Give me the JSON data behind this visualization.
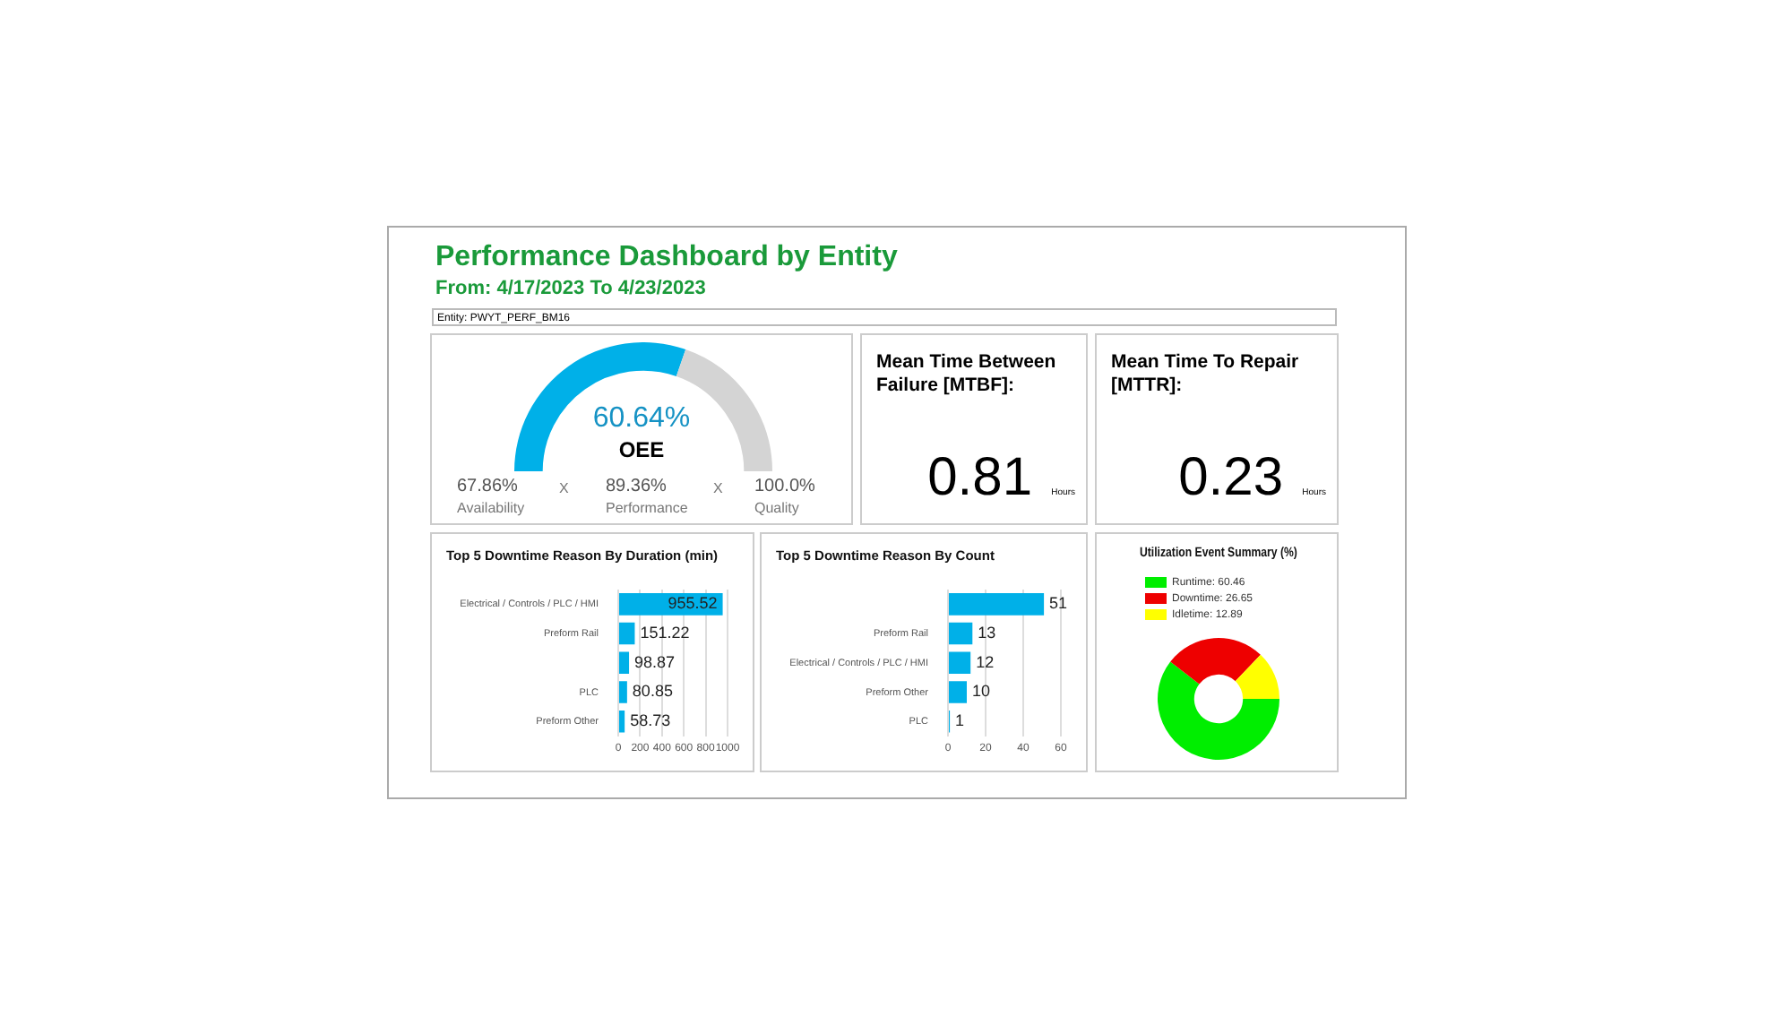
{
  "chart_data": [
    {
      "type": "other",
      "title": "Performance Dashboard by Entity",
      "subtitle": "From: 4/17/2023 To 4/23/2023",
      "annotations": [
        "Entity: PWYT_PERF_BM16"
      ]
    },
    {
      "type": "donut",
      "categories": [
        "OEE",
        null
      ],
      "values": [
        60.64,
        39.36
      ],
      "colors": [
        "#00b0e8",
        "#d4d4d4"
      ],
      "value_labels": [
        "60.64%",
        null
      ],
      "annotations": [
        "67.86%",
        "Availability",
        "X",
        "89.36%",
        "Performance",
        "X",
        "100.0%",
        "Quality"
      ]
    },
    {
      "type": "other",
      "title": "Mean Time Between Failure [MTBF]:",
      "annotations": [
        "0.81",
        "Hours"
      ]
    },
    {
      "type": "other",
      "title": "Mean Time To Repair [MTTR]:",
      "annotations": [
        "0.23",
        "Hours"
      ]
    },
    {
      "type": "bar",
      "orientation": "horizontal",
      "title": "Top 5 Downtime Reason By Duration (min)",
      "categories": [
        "Electrical / Controls / PLC / HMI",
        "Preform Rail",
        null,
        "PLC",
        "Preform Other"
      ],
      "values": [
        955.52,
        151.22,
        98.87,
        80.85,
        58.73
      ],
      "color": "#00b0e8",
      "xlim": [
        0,
        1000
      ],
      "xticks": [
        0,
        200,
        400,
        600,
        800,
        1000
      ],
      "grid": "x",
      "data_labels": true
    },
    {
      "type": "bar",
      "orientation": "horizontal",
      "title": "Top 5 Downtime Reason By Count",
      "categories": [
        null,
        "Preform Rail",
        "Electrical / Controls / PLC / HMI",
        "Preform Other",
        "PLC"
      ],
      "values": [
        51,
        13,
        12,
        10,
        1
      ],
      "color": "#00b0e8",
      "xlim": [
        0,
        60
      ],
      "xticks": [
        0,
        20,
        40,
        60
      ],
      "grid": "x",
      "data_labels": true
    },
    {
      "type": "donut",
      "title": "Utilization Event Summary (%)",
      "categories": [
        "Runtime: 60.46",
        "Downtime: 26.65",
        "Idletime: 12.89"
      ],
      "values": [
        60.46,
        26.65,
        12.89
      ],
      "colors": [
        "#00ee00",
        "#ee0000",
        "#ffff00"
      ],
      "legend": "top left"
    }
  ]
}
